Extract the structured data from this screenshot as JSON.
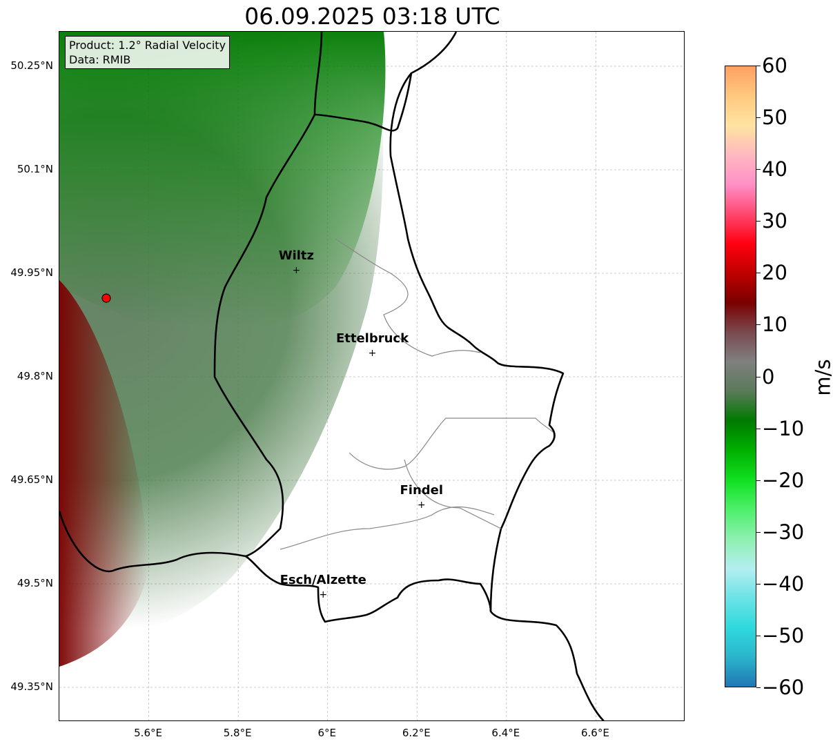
{
  "title": "06.09.2025 03:18 UTC",
  "info": {
    "product": "Product: 1.2° Radial Velocity",
    "source": "Data: RMIB"
  },
  "map": {
    "lon_range": [
      5.4,
      6.8
    ],
    "lat_range": [
      49.3,
      50.3
    ],
    "x_ticks": [
      "5.6°E",
      "5.8°E",
      "6°E",
      "6.2°E",
      "6.4°E",
      "6.6°E"
    ],
    "y_ticks": [
      "50.25°N",
      "50.1°N",
      "49.95°N",
      "49.8°N",
      "49.65°N",
      "49.5°N",
      "49.35°N"
    ],
    "gridlines": true,
    "radar_site": {
      "lon": 5.505,
      "lat": 49.914
    },
    "cities": [
      {
        "name": "Wiltz",
        "lon": 5.93,
        "lat": 49.97
      },
      {
        "name": "Ettelbruck",
        "lon": 6.1,
        "lat": 49.85
      },
      {
        "name": "Findel",
        "lon": 6.21,
        "lat": 49.63
      },
      {
        "name": "Esch/Alzette",
        "lon": 5.99,
        "lat": 49.5
      }
    ]
  },
  "colorbar": {
    "label": "m/s",
    "ticks": [
      "60",
      "50",
      "40",
      "30",
      "20",
      "10",
      "0",
      "−10",
      "−20",
      "−30",
      "−40",
      "−50",
      "−60"
    ],
    "range": [
      -60,
      60
    ],
    "colors": [
      "#2077b4",
      "#2bb5cc",
      "#2fd9dc",
      "#6be3e6",
      "#b4eef0",
      "#8ef0b0",
      "#4df06a",
      "#10e020",
      "#00b000",
      "#007a00",
      "#5a7a5a",
      "#808080",
      "#7a4a50",
      "#7a0000",
      "#c00000",
      "#ff0010",
      "#ff4870",
      "#ff90c8",
      "#ffb8c0",
      "#ffe4a0",
      "#ffc880",
      "#ffa060"
    ]
  }
}
